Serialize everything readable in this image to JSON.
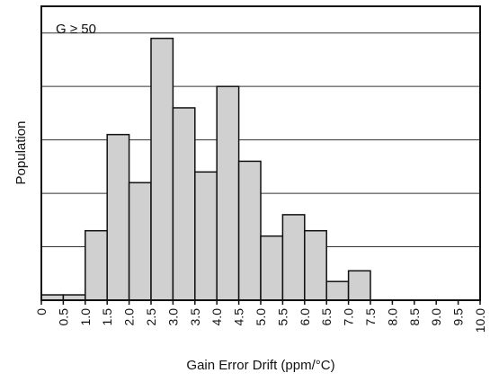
{
  "chart_data": {
    "type": "bar",
    "histogram": true,
    "annotation": "G ≥ 50",
    "xlabel": "Gain Error Drift (ppm/°C)",
    "ylabel": "Population",
    "xlim": [
      0,
      10
    ],
    "ylim": [
      0,
      5.5
    ],
    "grid": {
      "horizontal": true,
      "vertical": false
    },
    "x_ticks": [
      "0",
      "0.5",
      "1.0",
      "1.5",
      "2.0",
      "2.5",
      "3.0",
      "3.5",
      "4.0",
      "4.5",
      "5.0",
      "5.5",
      "6.0",
      "6.5",
      "7.0",
      "7.5",
      "8.0",
      "8.5",
      "9.0",
      "9.5",
      "10.0"
    ],
    "bins": [
      {
        "start": 0.0,
        "end": 0.5,
        "value": 0.1
      },
      {
        "start": 0.5,
        "end": 1.0,
        "value": 0.1
      },
      {
        "start": 1.0,
        "end": 1.5,
        "value": 1.3
      },
      {
        "start": 1.5,
        "end": 2.0,
        "value": 3.1
      },
      {
        "start": 2.0,
        "end": 2.5,
        "value": 2.2
      },
      {
        "start": 2.5,
        "end": 3.0,
        "value": 4.9
      },
      {
        "start": 3.0,
        "end": 3.5,
        "value": 3.6
      },
      {
        "start": 3.5,
        "end": 4.0,
        "value": 2.4
      },
      {
        "start": 4.0,
        "end": 4.5,
        "value": 4.0
      },
      {
        "start": 4.5,
        "end": 5.0,
        "value": 2.6
      },
      {
        "start": 5.0,
        "end": 5.5,
        "value": 1.2
      },
      {
        "start": 5.5,
        "end": 6.0,
        "value": 1.6
      },
      {
        "start": 6.0,
        "end": 6.5,
        "value": 1.3
      },
      {
        "start": 6.5,
        "end": 7.0,
        "value": 0.35
      },
      {
        "start": 7.0,
        "end": 7.5,
        "value": 0.55
      }
    ],
    "colors": {
      "bar_fill": "#d0d0d0",
      "bar_stroke": "#111111",
      "grid": "#333333",
      "frame": "#111111"
    }
  }
}
